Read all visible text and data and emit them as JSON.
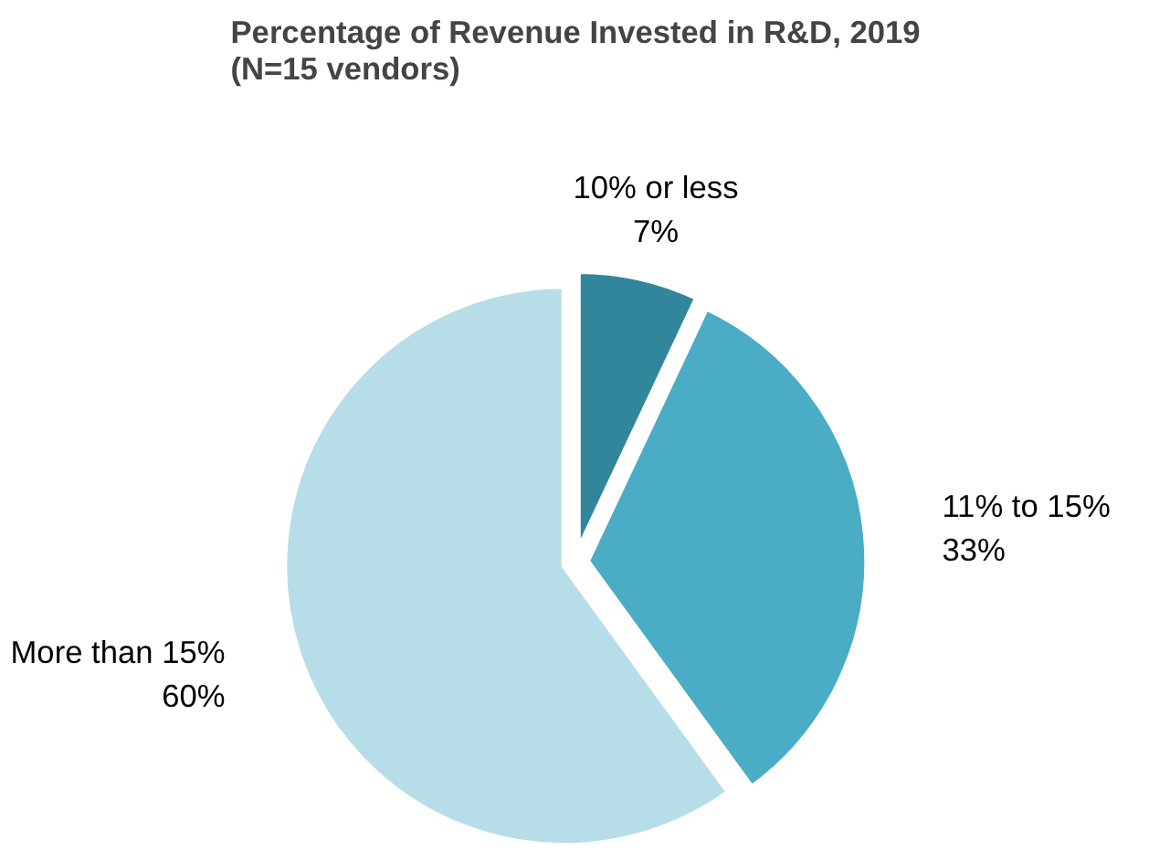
{
  "chart_data": {
    "type": "pie",
    "title": "Percentage of Revenue Invested in R&D, 2019\n(N=15 vendors)",
    "categories": [
      "10% or less",
      "11% to 15%",
      "More than 15%"
    ],
    "values": [
      7,
      33,
      60
    ],
    "colors": [
      "#31869b",
      "#4bacc6",
      "#b7dee8"
    ],
    "value_labels": [
      "7%",
      "33%",
      "60%"
    ]
  }
}
